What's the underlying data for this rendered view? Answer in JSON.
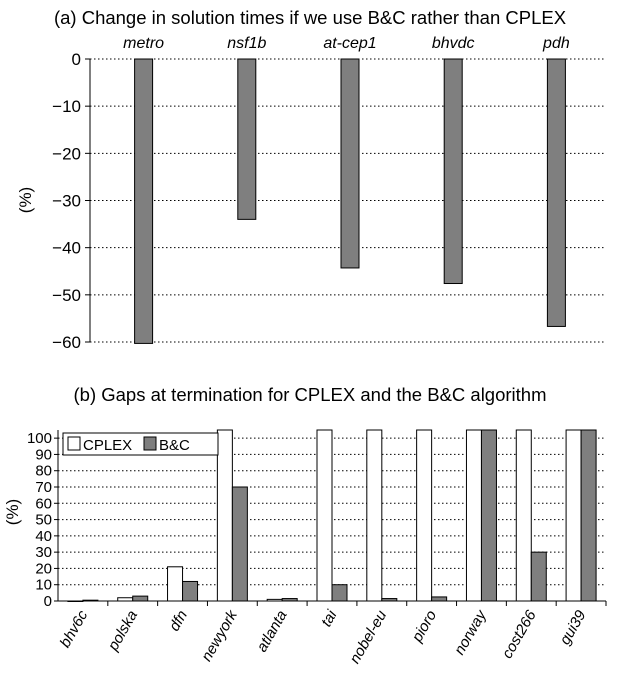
{
  "colors": {
    "bar_dark": "#7f7f7f",
    "bar_light": "#ffffff",
    "stroke": "#000000",
    "grid": "#000000"
  },
  "chart_data": [
    {
      "type": "bar",
      "title": "(a) Change in solution times if we use B&C rather than CPLEX",
      "ylabel": "(%)",
      "xlabel": "",
      "ylim": [
        -60,
        0
      ],
      "yticks": [
        0,
        -10,
        -20,
        -30,
        -40,
        -50,
        -60
      ],
      "ytick_labels": [
        "0",
        "−10",
        "−20",
        "−30",
        "−40",
        "−50",
        "−60"
      ],
      "categories": [
        "metro",
        "nsf1b",
        "at-cep1",
        "bhvdc",
        "pdh"
      ],
      "category_label_position": "top",
      "grid": "horizontal dotted",
      "values": [
        -60.3,
        -34,
        -44.3,
        -47.6,
        -56.7
      ]
    },
    {
      "type": "bar",
      "title": "(b) Gaps at termination for CPLEX and the B&C algorithm",
      "ylabel": "(%)",
      "xlabel": "",
      "ylim": [
        0,
        105
      ],
      "yticks": [
        0,
        10,
        20,
        30,
        40,
        50,
        60,
        70,
        80,
        90,
        100
      ],
      "ytick_labels": [
        "0",
        "10",
        "20",
        "30",
        "40",
        "50",
        "60",
        "70",
        "80",
        "90",
        "100"
      ],
      "categories": [
        "bhv6c",
        "polska",
        "dfn",
        "newyork",
        "atlanta",
        "tai",
        "nobel-eu",
        "pioro",
        "norway",
        "cost266",
        "gui39"
      ],
      "grid": "horizontal dotted",
      "legend_position": "top-left",
      "series": [
        {
          "name": "CPLEX",
          "values": [
            0,
            2,
            21,
            105,
            1,
            105,
            105,
            105,
            105,
            105,
            105
          ]
        },
        {
          "name": "B&C",
          "values": [
            0.5,
            3,
            12,
            70,
            1.5,
            10,
            1.5,
            2.5,
            105,
            30,
            105
          ]
        }
      ]
    }
  ]
}
